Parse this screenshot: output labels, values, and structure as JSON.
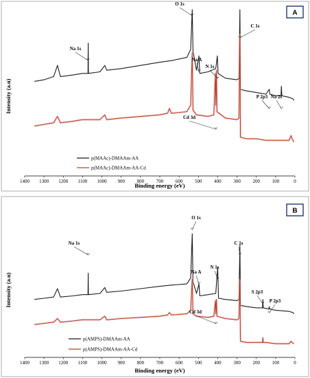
{
  "chart_data": [
    {
      "type": "line",
      "panel_label": "A",
      "xlabel": "Binding energy (eV)",
      "ylabel": "Intensity (a.u)",
      "xlim": [
        1400,
        0
      ],
      "x_ticks": [
        1400,
        1300,
        1200,
        1100,
        1000,
        900,
        800,
        700,
        600,
        500,
        400,
        300,
        200,
        100,
        0
      ],
      "series": [
        {
          "name": "p(MAAc)-DMAAm-AA",
          "color": "#1a1a1a",
          "points": [
            [
              1350,
              0.55
            ],
            [
              1300,
              0.56
            ],
            [
              1250,
              0.58
            ],
            [
              1230,
              0.65
            ],
            [
              1215,
              0.58
            ],
            [
              1150,
              0.59
            ],
            [
              1100,
              0.6
            ],
            [
              1072,
              0.6
            ],
            [
              1071,
              0.79
            ],
            [
              1070,
              0.6
            ],
            [
              1010,
              0.61
            ],
            [
              985,
              0.65
            ],
            [
              975,
              0.62
            ],
            [
              900,
              0.63
            ],
            [
              800,
              0.65
            ],
            [
              700,
              0.67
            ],
            [
              640,
              0.68
            ],
            [
              560,
              0.7
            ],
            [
              540,
              0.75
            ],
            [
              532,
              1.0
            ],
            [
              528,
              0.74
            ],
            [
              510,
              0.62
            ],
            [
              497,
              0.71
            ],
            [
              493,
              0.6
            ],
            [
              450,
              0.61
            ],
            [
              410,
              0.63
            ],
            [
              402,
              0.71
            ],
            [
              398,
              0.6
            ],
            [
              360,
              0.57
            ],
            [
              300,
              0.56
            ],
            [
              290,
              0.57
            ],
            [
              285,
              1.0
            ],
            [
              282,
              0.5
            ],
            [
              250,
              0.49
            ],
            [
              200,
              0.48
            ],
            [
              150,
              0.47
            ],
            [
              133,
              0.5
            ],
            [
              130,
              0.47
            ],
            [
              100,
              0.46
            ],
            [
              72,
              0.46
            ],
            [
              70,
              0.52
            ],
            [
              68,
              0.46
            ],
            [
              30,
              0.45
            ],
            [
              10,
              0.44
            ],
            [
              5,
              0.43
            ]
          ]
        },
        {
          "name": "p(MAAc)-DMAAm-AA-Cd",
          "color": "#b5462a",
          "points": [
            [
              1350,
              0.27
            ],
            [
              1300,
              0.28
            ],
            [
              1250,
              0.29
            ],
            [
              1230,
              0.33
            ],
            [
              1215,
              0.29
            ],
            [
              1150,
              0.3
            ],
            [
              1100,
              0.31
            ],
            [
              1010,
              0.31
            ],
            [
              985,
              0.34
            ],
            [
              975,
              0.31
            ],
            [
              900,
              0.32
            ],
            [
              800,
              0.33
            ],
            [
              700,
              0.34
            ],
            [
              660,
              0.35
            ],
            [
              650,
              0.38
            ],
            [
              640,
              0.35
            ],
            [
              560,
              0.36
            ],
            [
              540,
              0.4
            ],
            [
              532,
              0.73
            ],
            [
              528,
              0.37
            ],
            [
              510,
              0.34
            ],
            [
              450,
              0.33
            ],
            [
              420,
              0.34
            ],
            [
              412,
              0.6
            ],
            [
              410,
              0.4
            ],
            [
              406,
              0.62
            ],
            [
              404,
              0.36
            ],
            [
              360,
              0.32
            ],
            [
              300,
              0.31
            ],
            [
              290,
              0.32
            ],
            [
              285,
              0.84
            ],
            [
              282,
              0.2
            ],
            [
              250,
              0.19
            ],
            [
              200,
              0.19
            ],
            [
              150,
              0.18
            ],
            [
              100,
              0.18
            ],
            [
              30,
              0.18
            ],
            [
              20,
              0.21
            ],
            [
              15,
              0.19
            ],
            [
              5,
              0.17
            ]
          ]
        }
      ],
      "annotations": [
        {
          "text": "Na 1s",
          "x": 1071
        },
        {
          "text": "O 1s",
          "x": 532
        },
        {
          "text": "C 1s",
          "x": 285
        },
        {
          "text": "Na A",
          "x": 497
        },
        {
          "text": "N 1s",
          "x": 400
        },
        {
          "text": "P 2p3",
          "x": 133
        },
        {
          "text": "Na 2s",
          "x": 70
        },
        {
          "text": "Cd 3d",
          "x": 409
        }
      ]
    },
    {
      "type": "line",
      "panel_label": "B",
      "xlabel": "Binding energy (eV)",
      "ylabel": "Intensity (a.u)",
      "xlim": [
        1400,
        0
      ],
      "x_ticks": [
        1400,
        1300,
        1200,
        1100,
        1000,
        900,
        800,
        700,
        600,
        500,
        400,
        300,
        200,
        100,
        0
      ],
      "series": [
        {
          "name": "p(AMPS)-DMAAm-AA",
          "color": "#1a1a1a",
          "points": [
            [
              1350,
              0.45
            ],
            [
              1300,
              0.46
            ],
            [
              1250,
              0.47
            ],
            [
              1230,
              0.54
            ],
            [
              1215,
              0.47
            ],
            [
              1150,
              0.48
            ],
            [
              1100,
              0.49
            ],
            [
              1072,
              0.49
            ],
            [
              1071,
              0.67
            ],
            [
              1070,
              0.49
            ],
            [
              1010,
              0.5
            ],
            [
              985,
              0.55
            ],
            [
              975,
              0.51
            ],
            [
              900,
              0.52
            ],
            [
              800,
              0.54
            ],
            [
              700,
              0.56
            ],
            [
              640,
              0.57
            ],
            [
              560,
              0.58
            ],
            [
              540,
              0.63
            ],
            [
              532,
              1.0
            ],
            [
              528,
              0.6
            ],
            [
              510,
              0.5
            ],
            [
              497,
              0.58
            ],
            [
              493,
              0.48
            ],
            [
              450,
              0.49
            ],
            [
              410,
              0.5
            ],
            [
              400,
              0.72
            ],
            [
              396,
              0.46
            ],
            [
              360,
              0.45
            ],
            [
              300,
              0.44
            ],
            [
              290,
              0.45
            ],
            [
              285,
              0.91
            ],
            [
              282,
              0.4
            ],
            [
              250,
              0.39
            ],
            [
              200,
              0.38
            ],
            [
              168,
              0.38
            ],
            [
              166,
              0.45
            ],
            [
              164,
              0.38
            ],
            [
              135,
              0.37
            ],
            [
              133,
              0.39
            ],
            [
              131,
              0.37
            ],
            [
              100,
              0.36
            ],
            [
              30,
              0.35
            ],
            [
              10,
              0.34
            ],
            [
              5,
              0.33
            ]
          ]
        },
        {
          "name": "p(AMPS)-DMAAm-AA-Cd",
          "color": "#b5462a",
          "points": [
            [
              1350,
              0.24
            ],
            [
              1300,
              0.25
            ],
            [
              1250,
              0.26
            ],
            [
              1230,
              0.29
            ],
            [
              1215,
              0.26
            ],
            [
              1150,
              0.27
            ],
            [
              1100,
              0.28
            ],
            [
              1010,
              0.28
            ],
            [
              985,
              0.31
            ],
            [
              975,
              0.28
            ],
            [
              900,
              0.29
            ],
            [
              800,
              0.3
            ],
            [
              700,
              0.31
            ],
            [
              660,
              0.32
            ],
            [
              650,
              0.34
            ],
            [
              640,
              0.32
            ],
            [
              560,
              0.33
            ],
            [
              540,
              0.36
            ],
            [
              532,
              0.62
            ],
            [
              528,
              0.33
            ],
            [
              510,
              0.31
            ],
            [
              450,
              0.3
            ],
            [
              420,
              0.31
            ],
            [
              412,
              0.44
            ],
            [
              410,
              0.33
            ],
            [
              406,
              0.45
            ],
            [
              404,
              0.31
            ],
            [
              360,
              0.29
            ],
            [
              300,
              0.28
            ],
            [
              290,
              0.29
            ],
            [
              285,
              0.61
            ],
            [
              282,
              0.1
            ],
            [
              250,
              0.09
            ],
            [
              200,
              0.09
            ],
            [
              168,
              0.09
            ],
            [
              166,
              0.13
            ],
            [
              164,
              0.09
            ],
            [
              150,
              0.09
            ],
            [
              100,
              0.08
            ],
            [
              30,
              0.08
            ],
            [
              20,
              0.1
            ],
            [
              15,
              0.09
            ],
            [
              5,
              0.08
            ]
          ]
        }
      ],
      "annotations": [
        {
          "text": "Na 1s",
          "x": 1071
        },
        {
          "text": "O 1s",
          "x": 532
        },
        {
          "text": "C 1s",
          "x": 285
        },
        {
          "text": "Na A",
          "x": 497
        },
        {
          "text": "N 1s",
          "x": 400
        },
        {
          "text": "S 2p3",
          "x": 166
        },
        {
          "text": "P 2p3",
          "x": 133
        },
        {
          "text": "Cd 3d",
          "x": 409
        }
      ]
    }
  ]
}
